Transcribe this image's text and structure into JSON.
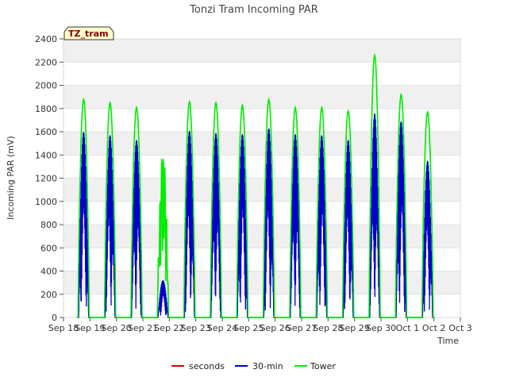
{
  "chart_data": {
    "type": "line",
    "title": "Tonzi Tram Incoming PAR",
    "xlabel": "Time",
    "ylabel": "Incoming PAR (mV)",
    "site_label": "TZ_tram",
    "ylim": [
      0,
      2400
    ],
    "yticks": [
      0,
      200,
      400,
      600,
      800,
      1000,
      1200,
      1400,
      1600,
      1800,
      2000,
      2200,
      2400
    ],
    "xlim": [
      0,
      15
    ],
    "xticks": [
      0,
      1,
      2,
      3,
      4,
      5,
      6,
      7,
      8,
      9,
      10,
      11,
      12,
      13,
      14,
      15
    ],
    "xtick_labels": [
      "Sep 18",
      "Sep 19",
      "Sep 20",
      "Sep 21",
      "Sep 22",
      "Sep 23",
      "Sep 24",
      "Sep 25",
      "Sep 26",
      "Sep 27",
      "Sep 28",
      "Sep 29",
      "Sep 30",
      "Oct 1",
      "Oct 2",
      "Oct 3"
    ],
    "grid": true,
    "legend_position": "bottom",
    "series": [
      {
        "name": "seconds",
        "color": "#dd0000",
        "points": []
      },
      {
        "name": "30-min",
        "color": "#0000cc",
        "daily_peaks": [
          1600,
          1570,
          1530,
          320,
          1610,
          1590,
          1580,
          1630,
          1580,
          1570,
          1530,
          1760,
          1690,
          1350
        ]
      },
      {
        "name": "Tower",
        "color": "#00ee00",
        "daily_peaks": [
          1880,
          1850,
          1810,
          1450,
          1860,
          1850,
          1830,
          1880,
          1810,
          1810,
          1780,
          2260,
          1920,
          1770
        ]
      }
    ]
  }
}
